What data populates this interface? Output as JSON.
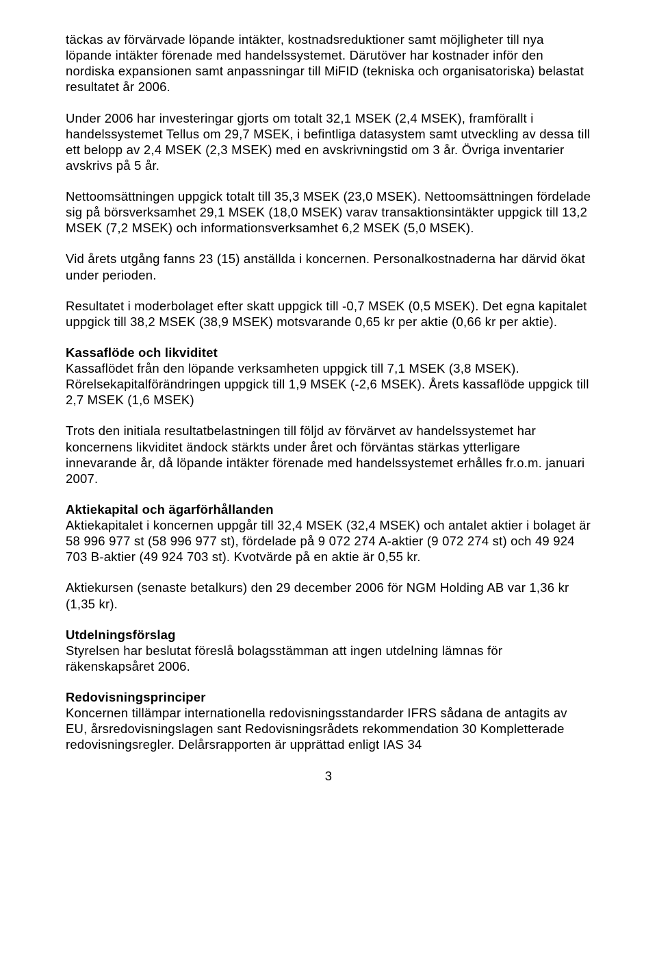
{
  "document": {
    "page_number": "3",
    "paragraphs": [
      {
        "text": "täckas av förvärvade löpande intäkter, kostnadsreduktioner samt möjligheter till nya löpande intäkter förenade med handelssystemet. Därutöver har kostnader inför den nordiska expansionen samt anpassningar till MiFID (tekniska och organisatoriska) belastat resultatet år 2006."
      },
      {
        "text": "Under 2006 har investeringar gjorts om totalt 32,1 MSEK (2,4 MSEK), framförallt i handelssystemet Tellus om 29,7 MSEK, i befintliga datasystem samt utveckling av dessa till ett belopp av 2,4 MSEK (2,3 MSEK) med en avskrivningstid om 3 år. Övriga inventarier avskrivs på 5 år."
      },
      {
        "text": "Nettoomsättningen uppgick totalt till 35,3 MSEK (23,0 MSEK). Nettoomsättningen fördelade sig på börsverksamhet 29,1 MSEK (18,0 MSEK) varav transaktionsintäkter uppgick till 13,2 MSEK (7,2 MSEK) och informationsverksamhet 6,2 MSEK (5,0 MSEK)."
      },
      {
        "text": "Vid årets utgång fanns 23 (15) anställda i koncernen. Personalkostnaderna har därvid ökat under perioden."
      },
      {
        "text": "Resultatet i moderbolaget efter skatt uppgick till -0,7 MSEK (0,5 MSEK). Det egna kapitalet uppgick till 38,2 MSEK (38,9 MSEK) motsvarande 0,65 kr per aktie (0,66 kr per aktie)."
      },
      {
        "heading": "Kassaflöde och likviditet",
        "text": "Kassaflödet från den löpande verksamheten uppgick till 7,1 MSEK (3,8 MSEK). Rörelsekapitalförändringen uppgick till 1,9 MSEK (-2,6 MSEK). Årets kassaflöde uppgick till 2,7 MSEK (1,6 MSEK)"
      },
      {
        "text": "Trots den initiala resultatbelastningen till följd av förvärvet av handelssystemet har koncernens likviditet ändock stärkts under året och förväntas stärkas ytterligare innevarande år, då löpande intäkter förenade med handelssystemet erhålles fr.o.m. januari 2007."
      },
      {
        "heading": "Aktiekapital och ägarförhållanden",
        "text": "Aktiekapitalet i koncernen uppgår till 32,4 MSEK (32,4 MSEK) och antalet aktier i bolaget är 58 996 977 st (58 996 977 st), fördelade på 9 072 274 A-aktier (9 072 274 st) och 49 924 703 B-aktier (49 924 703 st). Kvotvärde på en aktie är 0,55 kr."
      },
      {
        "text": "Aktiekursen (senaste betalkurs) den 29 december 2006 för NGM Holding AB var 1,36 kr (1,35 kr)."
      },
      {
        "heading": "Utdelningsförslag",
        "text": "Styrelsen har beslutat föreslå bolagsstämman att ingen utdelning lämnas för räkenskapsåret 2006."
      },
      {
        "heading": "Redovisningsprinciper",
        "text": "Koncernen tillämpar internationella redovisningsstandarder IFRS sådana de antagits av EU, årsredovisningslagen sant Redovisningsrådets rekommendation 30 Kompletterade redovisningsregler. Delårsrapporten är upprättad enligt IAS 34"
      }
    ]
  }
}
